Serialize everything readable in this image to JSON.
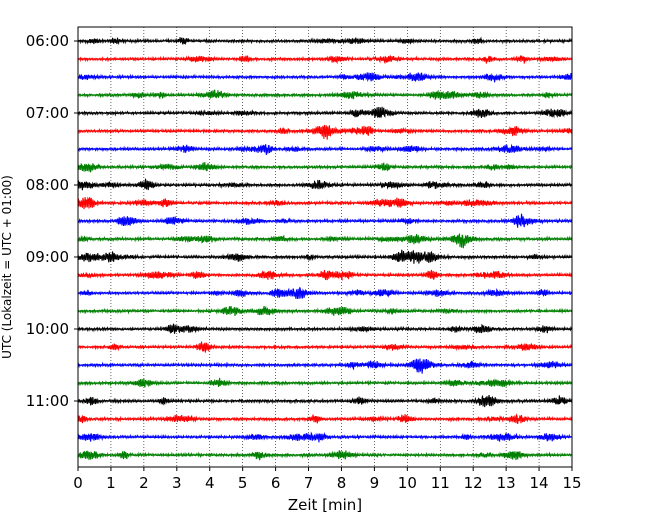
{
  "chart_data": {
    "type": "line",
    "title": "",
    "xlabel": "Zeit  [min]",
    "ylabel": "UTC (Lokalzeit = UTC + 01:00)",
    "xlim": [
      0,
      15
    ],
    "xticks": [
      "0",
      "1",
      "2",
      "3",
      "4",
      "5",
      "6",
      "7",
      "8",
      "9",
      "10",
      "11",
      "12",
      "13",
      "14",
      "15"
    ],
    "ytick_labels": [
      "06:00",
      "07:00",
      "08:00",
      "09:00",
      "10:00",
      "11:00"
    ],
    "grid": "vertical dotted lines at each minute",
    "colors": [
      "#000000",
      "#ff0000",
      "#0000ff",
      "#008000"
    ],
    "traces_per_hour": 4,
    "trace_count": 24,
    "trace_start_times": [
      "06:00",
      "06:15",
      "06:30",
      "06:45",
      "07:00",
      "07:15",
      "07:30",
      "07:45",
      "08:00",
      "08:15",
      "08:30",
      "08:45",
      "09:00",
      "09:15",
      "09:30",
      "09:45",
      "10:00",
      "10:15",
      "10:30",
      "10:45",
      "11:00",
      "11:15",
      "11:30",
      "11:45"
    ],
    "trace_colors": [
      "#000000",
      "#ff0000",
      "#0000ff",
      "#008000",
      "#000000",
      "#ff0000",
      "#0000ff",
      "#008000",
      "#000000",
      "#ff0000",
      "#0000ff",
      "#008000",
      "#000000",
      "#ff0000",
      "#0000ff",
      "#008000",
      "#000000",
      "#ff0000",
      "#0000ff",
      "#008000",
      "#000000",
      "#ff0000",
      "#0000ff",
      "#008000"
    ]
  }
}
